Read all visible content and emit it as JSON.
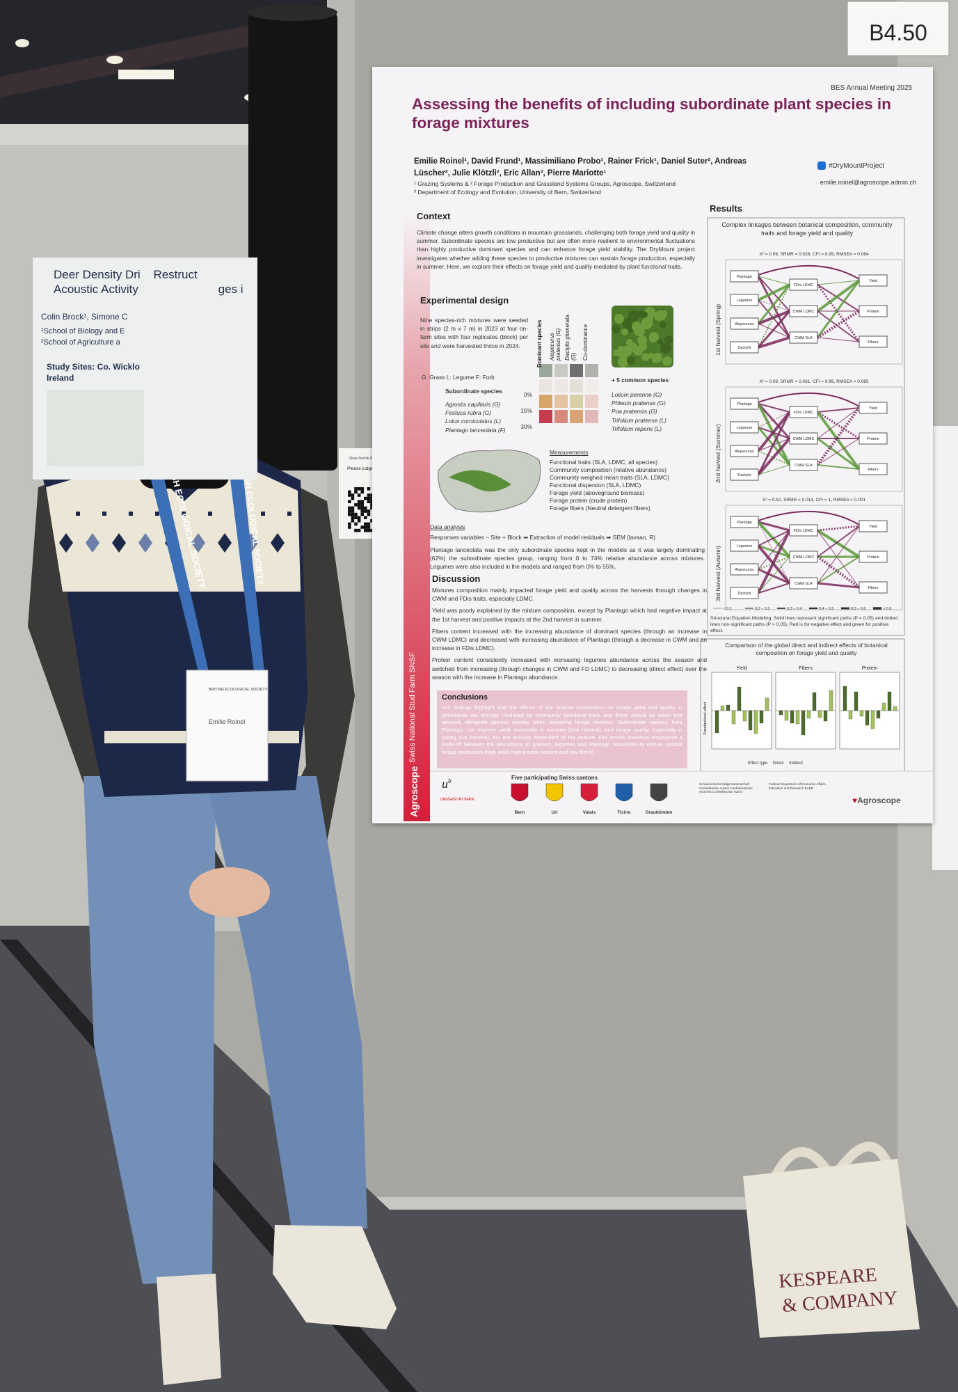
{
  "booth_number": "B4.50",
  "left_poster": {
    "title_lines": [
      "Deer Density Dri",
      "Restruct",
      "Acoustic Activity",
      "ges i"
    ],
    "authors": "Colin Brock¹, Simone C",
    "affiliations": [
      "¹School of Biology and E",
      "²School of Agriculture a"
    ],
    "study_sites": "Study Sites: Co. Wicklo",
    "country": "Ireland"
  },
  "judge_card": {
    "name": "Olivia Nochik Prize Candidate",
    "text": "Please judge my poster"
  },
  "lanyard": "BRITISH ECOLOGICAL SOCIETY",
  "badge": {
    "org": "BRITISH ECOLOGICAL SOCIETY",
    "name": "Emilie Roinel"
  },
  "bag": {
    "line1": "KESPEARE",
    "line2": "& COMPANY"
  },
  "poster": {
    "meeting": "BES Annual Meeting 2025",
    "title": "Assessing the benefits of including subordinate plant species in forage mixtures",
    "authors": "Emilie Roinel¹, David Frund¹, Massimiliano Probo¹, Rainer Frick¹, Daniel Suter², Andreas Lüscher², Julie Klötzli², Eric Allan³, Pierre Mariotte¹",
    "affiliations": [
      "¹ Grazing Systems & ² Forage Production and Grassland Systems Groups, Agroscope, Switzerland",
      "³ Department of Ecology and Evolution, University of Bern, Switzerland"
    ],
    "hashtag": "#DryMountProject",
    "email": "emilie.roinel@agroscope.admin.ch",
    "side_banner": "Swiss National Stud Farm SNSF",
    "side_logo": "Agroscope",
    "context": {
      "heading": "Context",
      "text": "Climate change alters growth conditions in mountain grasslands, challenging both forage yield and quality in summer. Subordinate species are low productive but are often more resilient to environmental fluctuations than highly productive dominant species and can enhance forage yield stability. The DryMount project investigates whether adding these species to productive mixtures can sustain forage production, especially in summer. Here, we explore their effects on forage yield and quality mediated by plant functional traits."
    },
    "design": {
      "heading": "Experimental design",
      "text": "Nine species-rich mixtures were seeded in strips (2 m x 7 m) in 2023 at four on-farm sites with four replicates (block) per site and were harvested thrice in 2024.",
      "legend": "G: Grass  L: Legume  F: Forb",
      "dominant_heading": "Dominant species",
      "dominant": [
        "Alopecurus pratensis (G)",
        "Dactylis glomerata (G)",
        "Co-dominance"
      ],
      "subordinate_heading": "Subordinate species",
      "subordinate": [
        "Agrostis capillaris (G)",
        "Festuca rubra (G)",
        "Lotus corniculatus (L)",
        "Plantago lanceolata (F)"
      ],
      "shares": [
        "0%",
        "15%",
        "30%"
      ],
      "common_heading": "+ 5 common species",
      "common": [
        "Lolium perenne (G)",
        "Phleum pratense (G)",
        "Poa pratensis (G)",
        "Trifolium pratense (L)",
        "Trifolium repens (L)"
      ],
      "measurements_heading": "Measurements",
      "measurements": [
        "Functional traits (SLA, LDMC, all species)",
        "Community composition (relative abundance)",
        "Community weighed mean traits (SLA, LDMC)",
        "Functional dispersion (SLA, LDMC)",
        "Forage yield (aboveground biomass)",
        "Forage protein (crude protein)",
        "Forage fibers (Neutral detergent fibers)"
      ],
      "analysis_heading": "Data analysis",
      "analysis": "Responses variables ~ Site + Block ➡ Extraction of model residuals ➡ SEM (lavaan, R)",
      "note": "Plantago lanceolata was the only subordinate species kept in the models as it was largely dominating (62%) the subordinate species group, ranging from 0 to 74% relative abundance across mixtures. Legumes were also included in the models and ranged from 0% to 55%."
    },
    "discussion": {
      "heading": "Discussion",
      "paragraphs": [
        "Mixtures composition mainly impacted forage yield and quality across the harvests through changes in CWM and FDis traits, especially LDMC.",
        "Yield was poorly explained by the mixture composition, except by Plantago which had negative impact at the 1st harvest and positive impacts at the 2nd harvest in summer.",
        "Fibers content increased with the increasing abundance of dominant species (through an increase in CWM LDMC) and decreased with increasing abundance of Plantago (through a decrease in CWM and an increase in FDis LDMC).",
        "Protein content consistently increased with increasing legumes abundance across the season and switched from increasing (through changes in CWM and FD LDMC) to decreasing (direct effect) over the season with the increase in Plantago abundance."
      ]
    },
    "conclusions": {
      "heading": "Conclusions",
      "text": "Our findings highlight that the effects of the mixture composition on forage yield and quality in grasslands are strongly mediated by community functional traits and these should be taken into account, alongside species identity, when designing forage mixtures. Subordinate species, here Plantago, can improve yield, especially in summer (2nd harvest), and forage quality, especially in spring (1st harvest), but are strongly dependent of the season. Our results therefore emphasize a trade-off between the abundance of grasses, legumes and Plantago lanceolata to ensure optimal forage production (high yield, high protein content and low fibers)."
    },
    "results": {
      "heading": "Results",
      "box_title": "Complex linkages between botanical composition, community traits and forage yield and quality",
      "harvests": [
        "1st harvest (Spring)",
        "2nd harvest (Summer)",
        "3rd harvest (Autumn)"
      ],
      "fits": [
        "X² = 0.09, SRMR = 0.028, CFI = 0.99, RMSEA = 0.084",
        "X² = 0.09, SRMR = 0.031, CFI = 0.99, RMSEA = 0.085",
        "X² = 0.52, SRMR = 0.014, CFI = 1, RMSEA < 0.001"
      ],
      "composition_nodes": [
        "Plantago",
        "Legumes",
        "Alopecurus",
        "Dactylis"
      ],
      "trait_nodes": [
        "FDis LDMC",
        "CWM LDMC",
        "CWM SLA"
      ],
      "response_nodes": [
        "Yield",
        "Protein",
        "Fibers"
      ],
      "path_legend": [
        "< 0.2",
        "0.2 – 0.3",
        "0.3 – 0.4",
        "0.4 – 0.5",
        "0.5 – 0.6",
        "> 0.6"
      ],
      "caption": "Structural Equation Modeling. Solid lines represent significant paths (P < 0.05) and dotted lines non-significant paths (P > 0.05). Red is for negative effect and green for positive effect.",
      "comparison_title": "Comparison of the global direct and indirect effects of botanical composition on forage yield and quality",
      "panels": [
        "Yield",
        "Fibers",
        "Protein"
      ],
      "effect_axis": "Standardized effect",
      "effect_legend": [
        "Effect type",
        "Direct",
        "Indirect"
      ]
    },
    "footer": {
      "cantons_heading": "Five participating Swiss cantons",
      "cantons": [
        "Bern",
        "Uri",
        "Valais",
        "Ticino",
        "Graubünden"
      ],
      "university": "UNIVERSITÄT BERN",
      "confederation": "Schweizerische Eidgenossenschaft Confédération suisse Confederazione Svizzera Confederaziun svizra",
      "department": "Federal Department of Economic Affairs, Education and Research EAER",
      "agroscope": "Agroscope"
    }
  }
}
